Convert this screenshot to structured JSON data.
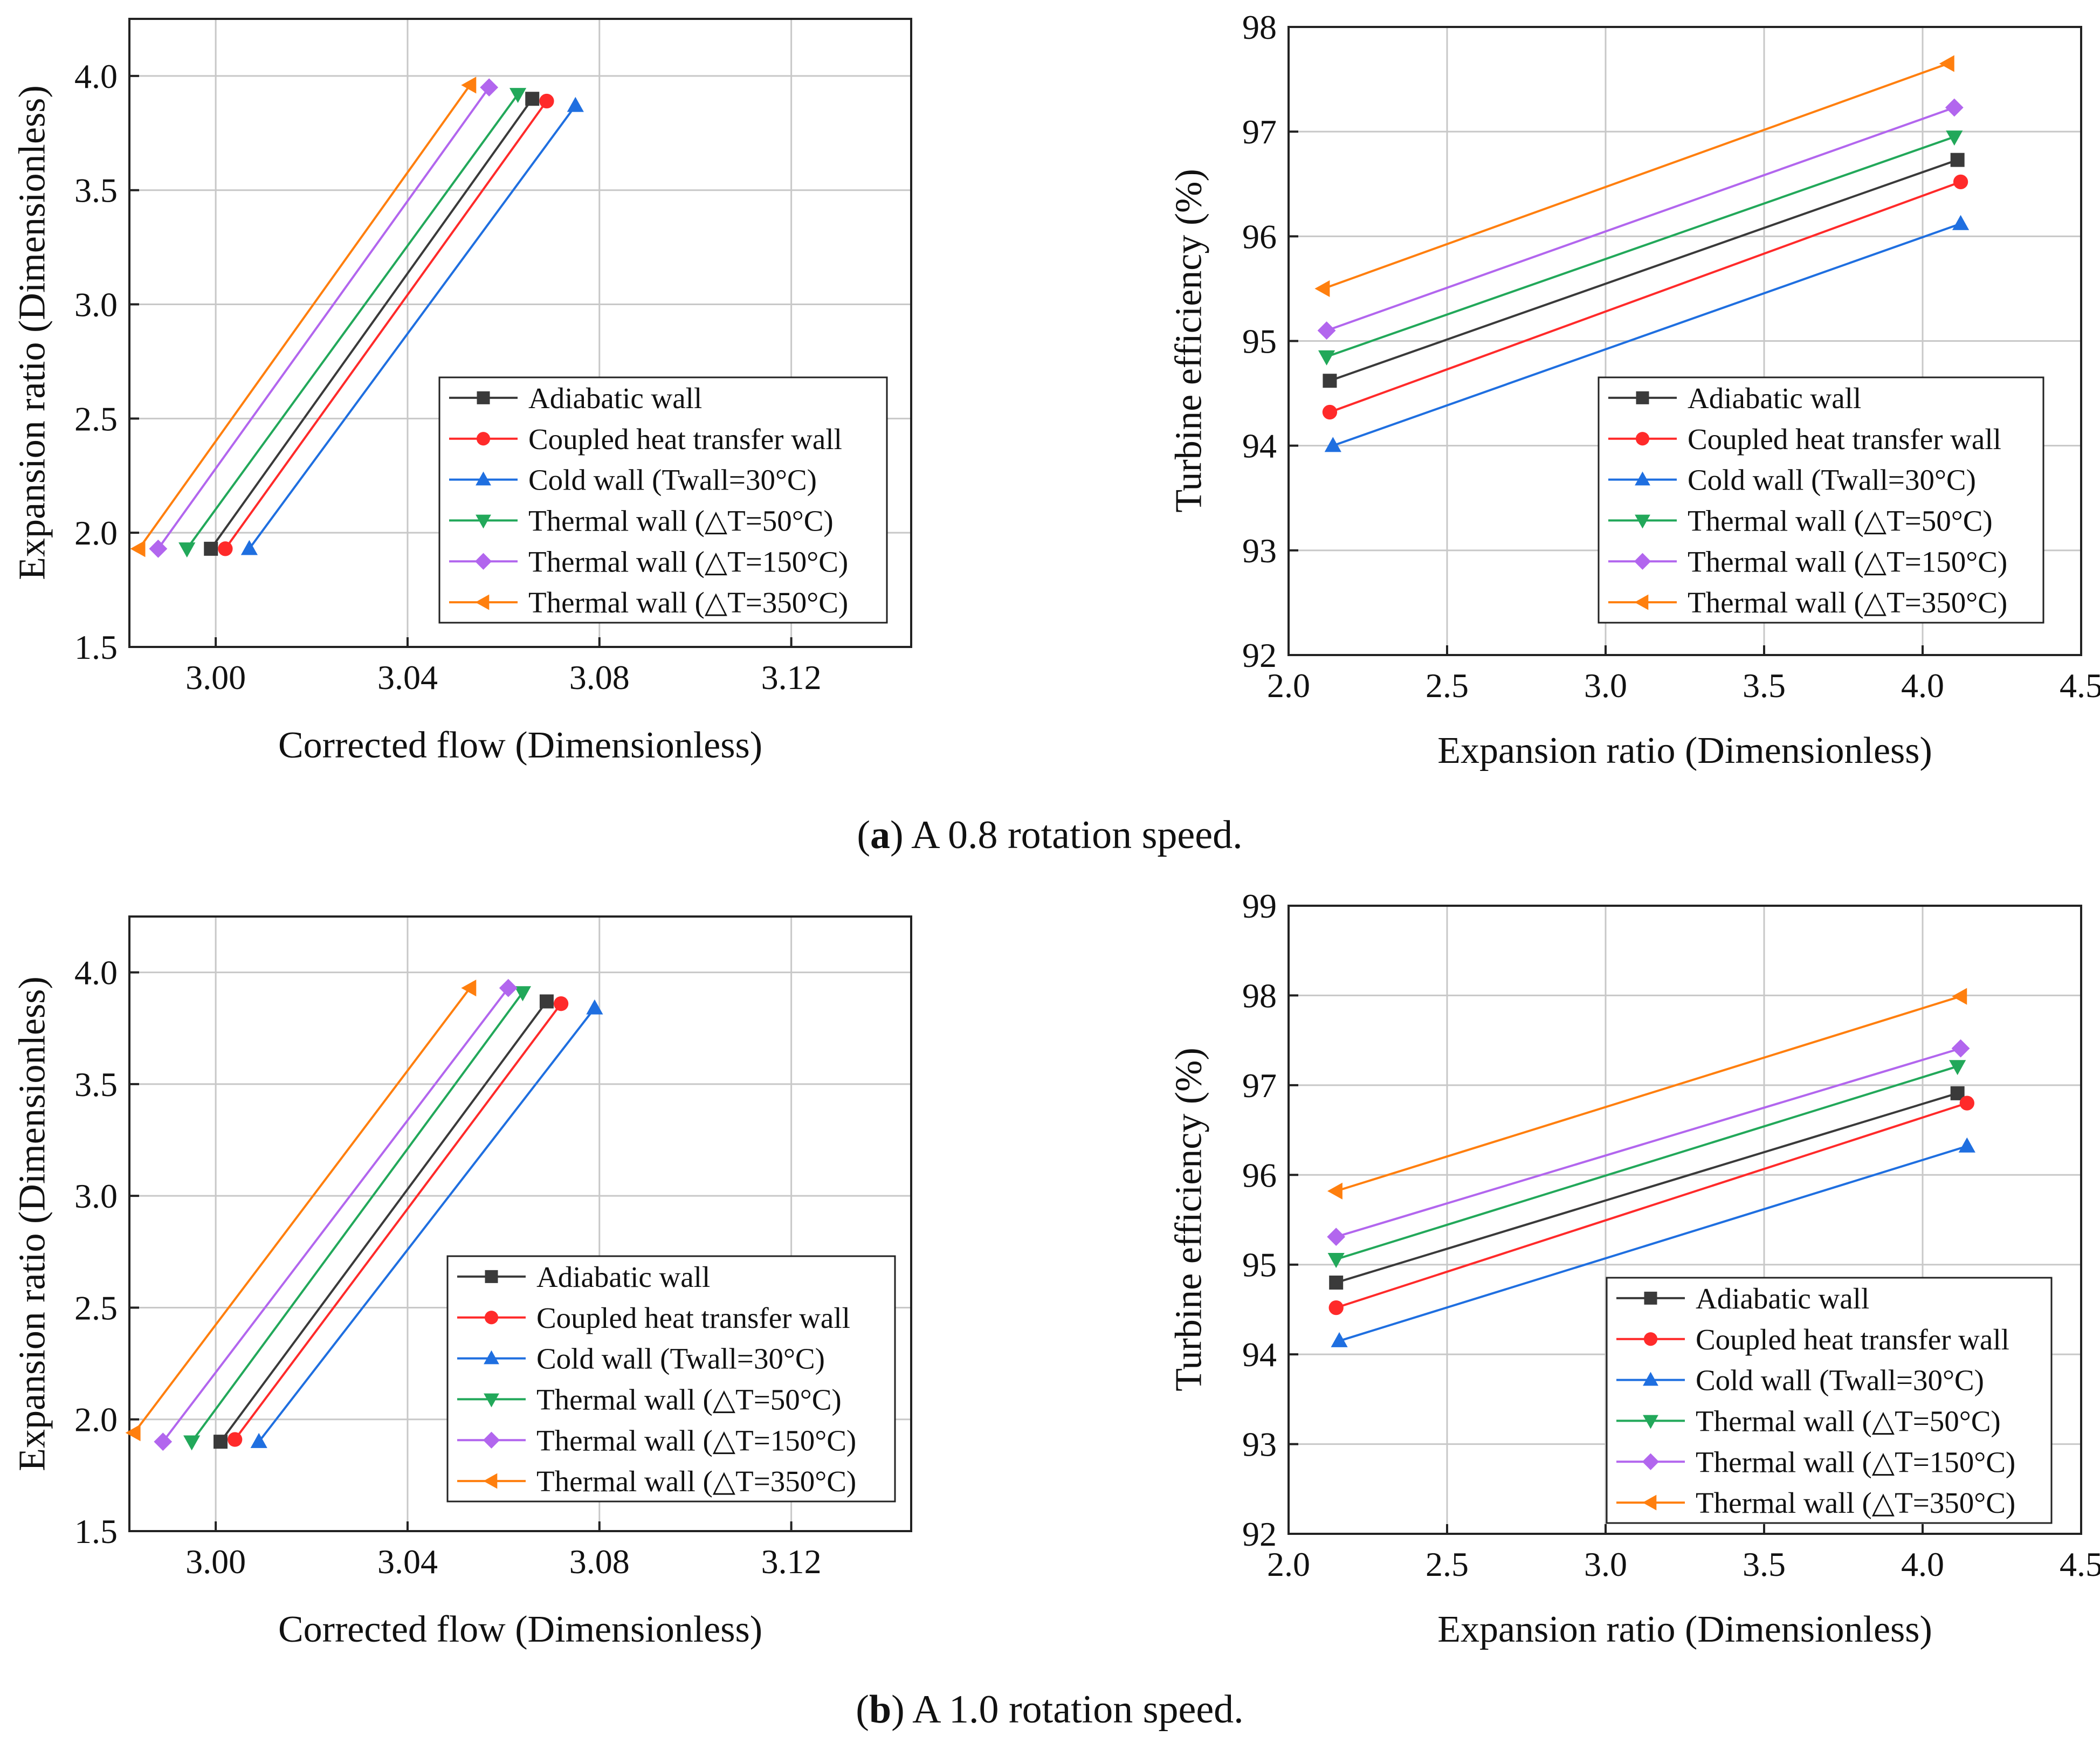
{
  "captions": {
    "a": {
      "open": "(",
      "letter": "a",
      "rest": ") A 0.8 rotation speed."
    },
    "b": {
      "open": "(",
      "letter": "b",
      "rest": ") A 1.0 rotation speed."
    }
  },
  "series_styles": [
    {
      "name": "Adiabatic wall",
      "color": "#3a3a3a",
      "marker": "square"
    },
    {
      "name": "Coupled heat transfer wall",
      "color": "#ff2a2a",
      "marker": "circle"
    },
    {
      "name": "Cold wall (Twall=30°C)",
      "color": "#1f6fe0",
      "marker": "triangle-up"
    },
    {
      "name": "Thermal wall (△T=50°C)",
      "color": "#22a85a",
      "marker": "triangle-down"
    },
    {
      "name": "Thermal wall (△T=150°C)",
      "color": "#b266ee",
      "marker": "diamond"
    },
    {
      "name": "Thermal wall  (△T=350°C)",
      "color": "#ff7f0e",
      "marker": "triangle-left"
    }
  ],
  "chart_data": [
    {
      "id": "a-left",
      "type": "line",
      "xlabel": "Corrected flow (Dimensionless)",
      "ylabel": "Expansion ratio (Dimensionless)",
      "xlim": [
        2.982,
        3.145
      ],
      "ylim": [
        1.5,
        4.25
      ],
      "xticks": [
        3.0,
        3.04,
        3.08,
        3.12
      ],
      "xtick_labels": [
        "3.00",
        "3.04",
        "3.08",
        "3.12"
      ],
      "yticks": [
        1.5,
        2.0,
        2.5,
        3.0,
        3.5,
        4.0
      ],
      "ytick_labels": [
        "1.5",
        "2.0",
        "2.5",
        "3.0",
        "3.5",
        "4.0"
      ],
      "legend": "bottom-right",
      "series": [
        {
          "name": "Adiabatic wall",
          "x": [
            2.999,
            3.066
          ],
          "y": [
            1.93,
            3.9
          ]
        },
        {
          "name": "Coupled heat transfer wall",
          "x": [
            3.002,
            3.069
          ],
          "y": [
            1.93,
            3.89
          ]
        },
        {
          "name": "Cold wall (Twall=30°C)",
          "x": [
            3.007,
            3.075
          ],
          "y": [
            1.93,
            3.87
          ]
        },
        {
          "name": "Thermal wall (△T=50°C)",
          "x": [
            2.994,
            3.063
          ],
          "y": [
            1.93,
            3.92
          ]
        },
        {
          "name": "Thermal wall (△T=150°C)",
          "x": [
            2.988,
            3.057
          ],
          "y": [
            1.93,
            3.95
          ]
        },
        {
          "name": "Thermal wall  (△T=350°C)",
          "x": [
            2.984,
            3.053
          ],
          "y": [
            1.93,
            3.96
          ]
        }
      ]
    },
    {
      "id": "a-right",
      "type": "line",
      "xlabel": "Expansion ratio (Dimensionless)",
      "ylabel": "Turbine efficiency (%)",
      "xlim": [
        2.0,
        4.5
      ],
      "ylim": [
        92,
        98
      ],
      "xticks": [
        2.0,
        2.5,
        3.0,
        3.5,
        4.0,
        4.5
      ],
      "xtick_labels": [
        "2.0",
        "2.5",
        "3.0",
        "3.5",
        "4.0",
        "4.5"
      ],
      "yticks": [
        92,
        93,
        94,
        95,
        96,
        97,
        98
      ],
      "ytick_labels": [
        "92",
        "93",
        "94",
        "95",
        "96",
        "97",
        "98"
      ],
      "legend": "bottom-right",
      "series": [
        {
          "name": "Adiabatic wall",
          "x": [
            2.13,
            4.11
          ],
          "y": [
            94.62,
            96.73
          ]
        },
        {
          "name": "Coupled heat transfer wall",
          "x": [
            2.13,
            4.12
          ],
          "y": [
            94.32,
            96.52
          ]
        },
        {
          "name": "Cold wall (Twall=30°C)",
          "x": [
            2.14,
            4.12
          ],
          "y": [
            94.0,
            96.12
          ]
        },
        {
          "name": "Thermal wall (△T=50°C)",
          "x": [
            2.12,
            4.1
          ],
          "y": [
            94.85,
            96.95
          ]
        },
        {
          "name": "Thermal wall (△T=150°C)",
          "x": [
            2.12,
            4.1
          ],
          "y": [
            95.1,
            97.23
          ]
        },
        {
          "name": "Thermal wall  (△T=350°C)",
          "x": [
            2.11,
            4.08
          ],
          "y": [
            95.5,
            97.65
          ]
        }
      ]
    },
    {
      "id": "b-left",
      "type": "line",
      "xlabel": "Corrected flow (Dimensionless)",
      "ylabel": "Expansion ratio (Dimensionless)",
      "xlim": [
        2.982,
        3.145
      ],
      "ylim": [
        1.5,
        4.25
      ],
      "xticks": [
        3.0,
        3.04,
        3.08,
        3.12
      ],
      "xtick_labels": [
        "3.00",
        "3.04",
        "3.08",
        "3.12"
      ],
      "yticks": [
        1.5,
        2.0,
        2.5,
        3.0,
        3.5,
        4.0
      ],
      "ytick_labels": [
        "1.5",
        "2.0",
        "2.5",
        "3.0",
        "3.5",
        "4.0"
      ],
      "legend": "bottom-right",
      "series": [
        {
          "name": "Adiabatic wall",
          "x": [
            3.001,
            3.069
          ],
          "y": [
            1.9,
            3.87
          ]
        },
        {
          "name": "Coupled heat transfer wall",
          "x": [
            3.004,
            3.072
          ],
          "y": [
            1.91,
            3.86
          ]
        },
        {
          "name": "Cold wall (Twall=30°C)",
          "x": [
            3.009,
            3.079
          ],
          "y": [
            1.9,
            3.84
          ]
        },
        {
          "name": "Thermal wall (△T=50°C)",
          "x": [
            2.995,
            3.064
          ],
          "y": [
            1.9,
            3.91
          ]
        },
        {
          "name": "Thermal wall (△T=150°C)",
          "x": [
            2.989,
            3.061
          ],
          "y": [
            1.9,
            3.93
          ]
        },
        {
          "name": "Thermal wall  (△T=350°C)",
          "x": [
            2.983,
            3.053
          ],
          "y": [
            1.94,
            3.93
          ]
        }
      ]
    },
    {
      "id": "b-right",
      "type": "line",
      "xlabel": "Expansion ratio (Dimensionless)",
      "ylabel": "Turbine efficiency (%)",
      "xlim": [
        2.0,
        4.5
      ],
      "ylim": [
        92,
        99
      ],
      "xticks": [
        2.0,
        2.5,
        3.0,
        3.5,
        4.0,
        4.5
      ],
      "xtick_labels": [
        "2.0",
        "2.5",
        "3.0",
        "3.5",
        "4.0",
        "4.5"
      ],
      "yticks": [
        92,
        93,
        94,
        95,
        96,
        97,
        98,
        99
      ],
      "ytick_labels": [
        "92",
        "93",
        "94",
        "95",
        "96",
        "97",
        "98",
        "99"
      ],
      "legend": "bottom-right",
      "series": [
        {
          "name": "Adiabatic wall",
          "x": [
            2.15,
            4.11
          ],
          "y": [
            94.8,
            96.91
          ]
        },
        {
          "name": "Coupled heat transfer wall",
          "x": [
            2.15,
            4.14
          ],
          "y": [
            94.52,
            96.8
          ]
        },
        {
          "name": "Cold wall (Twall=30°C)",
          "x": [
            2.16,
            4.14
          ],
          "y": [
            94.15,
            96.32
          ]
        },
        {
          "name": "Thermal wall (△T=50°C)",
          "x": [
            2.15,
            4.11
          ],
          "y": [
            95.06,
            97.21
          ]
        },
        {
          "name": "Thermal wall (△T=150°C)",
          "x": [
            2.15,
            4.12
          ],
          "y": [
            95.31,
            97.41
          ]
        },
        {
          "name": "Thermal wall  (△T=350°C)",
          "x": [
            2.15,
            4.12
          ],
          "y": [
            95.82,
            97.99
          ]
        }
      ]
    }
  ]
}
